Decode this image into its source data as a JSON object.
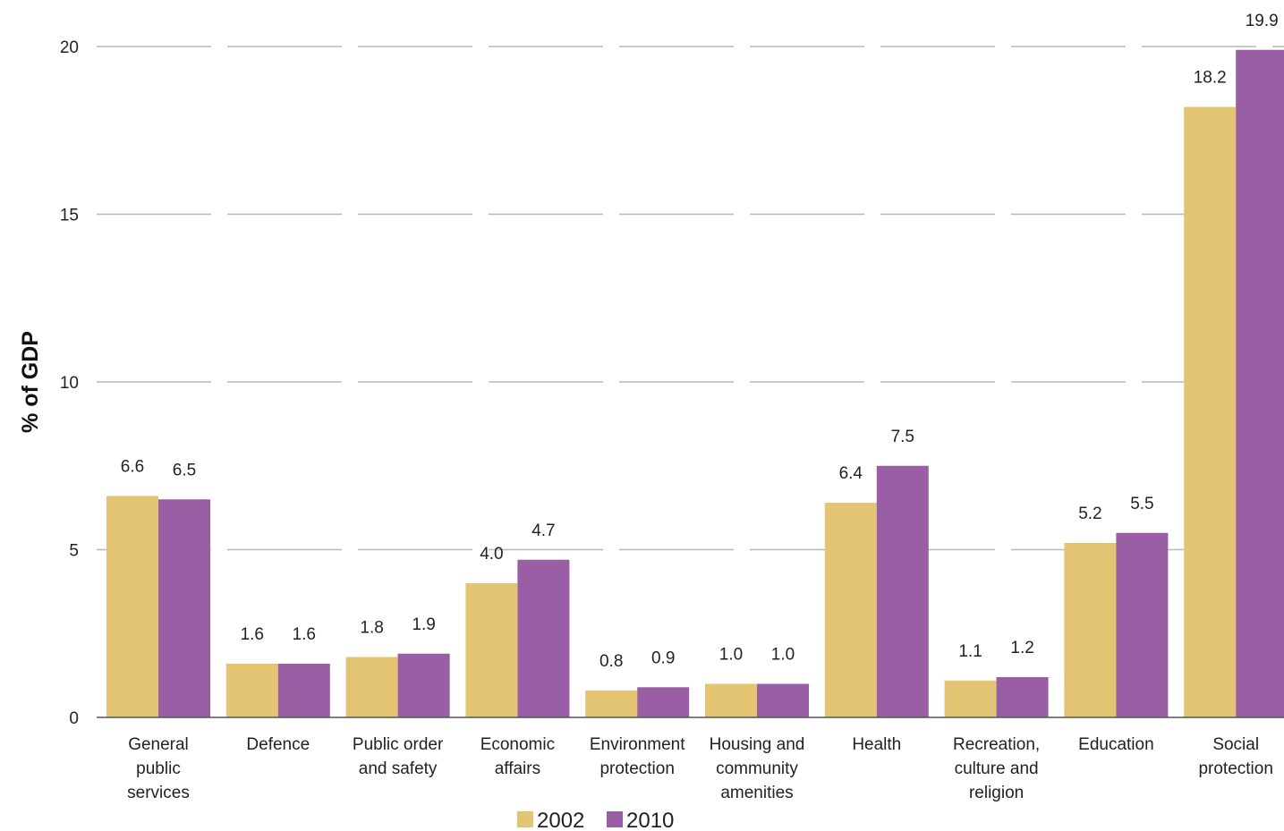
{
  "chart_data": {
    "type": "bar",
    "title": "",
    "xlabel": "",
    "ylabel": "% of GDP",
    "ylim": [
      0,
      20
    ],
    "yticks": [
      0,
      5,
      10,
      15,
      20
    ],
    "grid": true,
    "legend_position": "bottom",
    "categories": [
      [
        "General",
        "public",
        "services"
      ],
      [
        "Defence"
      ],
      [
        "Public order",
        "and safety"
      ],
      [
        "Economic",
        "affairs"
      ],
      [
        "Environment",
        "protection"
      ],
      [
        "Housing and",
        "community",
        "amenities"
      ],
      [
        "Health"
      ],
      [
        "Recreation,",
        "culture and",
        "religion"
      ],
      [
        "Education"
      ],
      [
        "Social",
        "protection"
      ]
    ],
    "series": [
      {
        "name": "2002",
        "color": "#E3C472",
        "values": [
          6.6,
          1.6,
          1.8,
          4.0,
          0.8,
          1.0,
          6.4,
          1.1,
          5.2,
          18.2
        ],
        "labels": [
          "6.6",
          "1.6",
          "1.8",
          "4.0",
          "0.8",
          "1.0",
          "6.4",
          "1.1",
          "5.2",
          "18.2"
        ]
      },
      {
        "name": "2010",
        "color": "#9A5EA5",
        "values": [
          6.5,
          1.6,
          1.9,
          4.7,
          0.9,
          1.0,
          7.5,
          1.2,
          5.5,
          19.9
        ],
        "labels": [
          "6.5",
          "1.6",
          "1.9",
          "4.7",
          "0.9",
          "1.0",
          "7.5",
          "1.2",
          "5.5",
          "19.9"
        ]
      }
    ]
  }
}
